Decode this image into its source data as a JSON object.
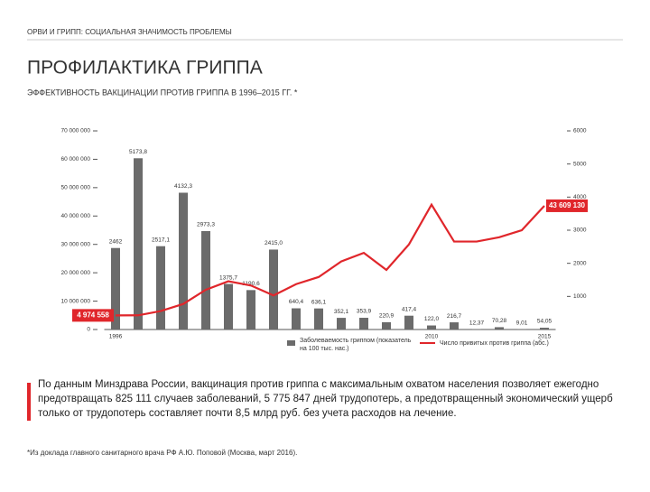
{
  "header": "ОРВИ И ГРИПП: СОЦИАЛЬНАЯ ЗНАЧИМОСТЬ ПРОБЛЕМЫ",
  "title": "ПРОФИЛАКТИКА ГРИППА",
  "body": "По данным Минздрава России, вакцинация против гриппа с максимальным охватом населения позволяет ежегодно предотвращать 825 111 случаев заболеваний, 5 775 847 дней трудопотерь, а  предотвращенный экономический ущерб только от трудопотерь составляет почти 8,5 млрд руб. без учета расходов на лечение.",
  "footnote": "*Из доклада главного санитарного врача РФ А.Ю. Поповой (Москва, март 2016).",
  "chart_data": {
    "type": "bar-line",
    "title": "ЭФФЕКТИВНОСТЬ ВАКЦИНАЦИИ ПРОТИВ ГРИППА В 1996–2015 ГГ. *",
    "categories": [
      "1996",
      null,
      null,
      null,
      null,
      null,
      null,
      null,
      null,
      null,
      null,
      null,
      null,
      null,
      "2010",
      null,
      null,
      null,
      null,
      "2015"
    ],
    "series": [
      {
        "name": "Заболеваемость гриппом (показатель на 100 тыс. нас.)",
        "type": "bar",
        "color": "#6b6b6b",
        "axis": "y2",
        "values": [
          2462,
          5173.8,
          2517.1,
          4132.3,
          2973.3,
          1375.7,
          1190.6,
          2415.0,
          640.4,
          636.1,
          352.1,
          353.9,
          220.9,
          417.4,
          122.0,
          216.7,
          12.37,
          70.28,
          9.01,
          54.05
        ],
        "value_labels": [
          "2462",
          "5173,8",
          "2517,1",
          "4132,3",
          "2973,3",
          "1375,7",
          "1190,6",
          "2415,0",
          "640,4",
          "636,1",
          "352,1",
          "353,9",
          "220,9",
          "417,4",
          "122,0",
          "216,7",
          "12,37",
          "70,28",
          "9,01",
          "54,05"
        ]
      },
      {
        "name": "Число привитых против гриппа (абс.)",
        "type": "line",
        "color": "#e0262b",
        "values": [
          4974558,
          5000000,
          6500000,
          9000000,
          14000000,
          17000000,
          15500000,
          12000000,
          16000000,
          18500000,
          24000000,
          27000000,
          21000000,
          30000000,
          44000000,
          31000000,
          31000000,
          32500000,
          35000000,
          43609130
        ],
        "value_labels": [
          "4 974 558",
          null,
          null,
          null,
          null,
          null,
          null,
          null,
          null,
          null,
          null,
          null,
          null,
          null,
          null,
          null,
          null,
          null,
          null,
          "43 609 130"
        ]
      }
    ],
    "ylim": [
      0,
      70000000
    ],
    "yticks": [
      {
        "value": 0,
        "label": "0"
      },
      {
        "value": 10000000,
        "label": "10 000 000"
      },
      {
        "value": 20000000,
        "label": "20 000 000"
      },
      {
        "value": 30000000,
        "label": "30 000 000"
      },
      {
        "value": 40000000,
        "label": "40 000 000"
      },
      {
        "value": 50000000,
        "label": "50 000 000"
      },
      {
        "value": 60000000,
        "label": "60 000 000"
      },
      {
        "value": 70000000,
        "label": "70 000 000"
      }
    ],
    "y2lim": [
      0,
      6000
    ],
    "y2ticks": [
      1000,
      2000,
      3000,
      4000,
      5000,
      6000
    ]
  }
}
